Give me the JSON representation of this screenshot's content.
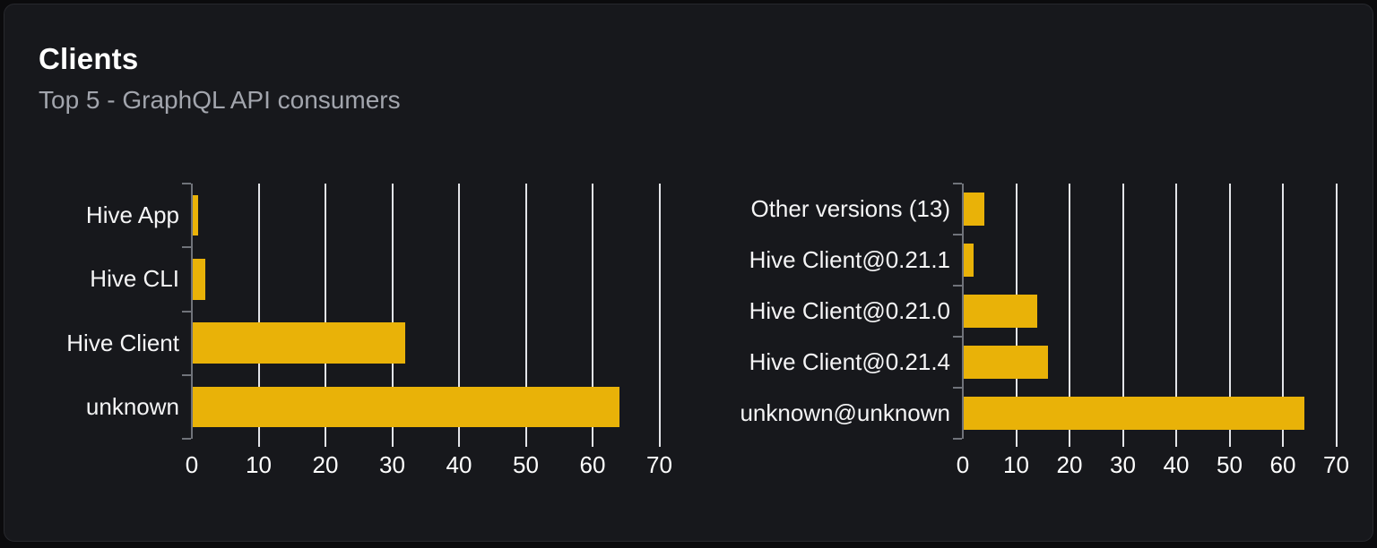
{
  "card": {
    "title": "Clients",
    "subtitle": "Top 5 - GraphQL API consumers"
  },
  "colors": {
    "bar": "#e9b208",
    "card_background": "#17181c",
    "page_background": "#0b0b0d",
    "gridline": "#e3e4e8",
    "axis": "#70737a",
    "title_text": "#ffffff",
    "subtitle_text": "#a2a5ad",
    "label_text": "#f5f5f6",
    "tick_text": "#ffffff"
  },
  "chart_data": [
    {
      "type": "bar",
      "orientation": "horizontal",
      "categories": [
        "Hive App",
        "Hive CLI",
        "Hive Client",
        "unknown"
      ],
      "values": [
        1,
        2,
        32,
        64
      ],
      "xlim": [
        0,
        70
      ],
      "xticks": [
        0,
        10,
        20,
        30,
        40,
        50,
        60,
        70
      ],
      "grid": true,
      "legend": false,
      "bar_color": "#e9b208"
    },
    {
      "type": "bar",
      "orientation": "horizontal",
      "categories": [
        "Other versions (13)",
        "Hive Client@0.21.1",
        "Hive Client@0.21.0",
        "Hive Client@0.21.4",
        "unknown@unknown"
      ],
      "values": [
        4,
        2,
        14,
        16,
        64
      ],
      "xlim": [
        0,
        70
      ],
      "xticks": [
        0,
        10,
        20,
        30,
        40,
        50,
        60,
        70
      ],
      "grid": true,
      "legend": false,
      "bar_color": "#e9b208"
    }
  ]
}
